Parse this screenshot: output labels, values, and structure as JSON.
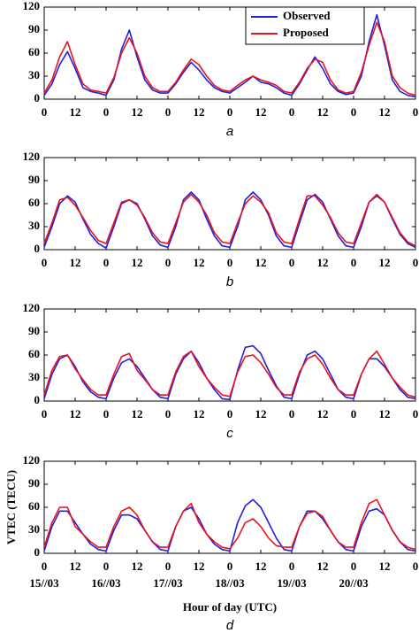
{
  "chart_data": [
    {
      "type": "line",
      "panel_label": "a",
      "legend": "upper right",
      "x": [
        0,
        3,
        6,
        9,
        12,
        15,
        18,
        21,
        24,
        27,
        30,
        33,
        36,
        39,
        42,
        45,
        48,
        51,
        54,
        57,
        60,
        63,
        66,
        69,
        72,
        75,
        78,
        81,
        84,
        87,
        90,
        93,
        96,
        99,
        102,
        105,
        108,
        111,
        114,
        117,
        120,
        123,
        126,
        129,
        132,
        135,
        138,
        141,
        144
      ],
      "xlim": [
        0,
        144
      ],
      "xticks": [
        0,
        12,
        {
          "value": 24,
          "label": "0"
        },
        {
          "value": 36,
          "label": "12"
        },
        {
          "value": 48,
          "label": "0"
        },
        {
          "value": 60,
          "label": "12"
        },
        {
          "value": 72,
          "label": "0"
        },
        {
          "value": 84,
          "label": "12"
        },
        {
          "value": 96,
          "label": "0"
        },
        {
          "value": 108,
          "label": "12"
        },
        {
          "value": 120,
          "label": "0"
        },
        {
          "value": 132,
          "label": "12"
        },
        {
          "value": 144,
          "label": "0"
        }
      ],
      "ylim": [
        0,
        120
      ],
      "yticks": [
        0,
        30,
        60,
        90,
        120
      ],
      "series": [
        {
          "name": "Observed",
          "color": "#1f1fe0",
          "values": [
            5,
            20,
            45,
            62,
            40,
            15,
            10,
            8,
            5,
            25,
            65,
            90,
            55,
            25,
            12,
            8,
            8,
            20,
            35,
            48,
            38,
            25,
            15,
            10,
            8,
            15,
            22,
            30,
            22,
            20,
            15,
            8,
            5,
            20,
            38,
            55,
            40,
            20,
            10,
            6,
            8,
            30,
            75,
            110,
            70,
            25,
            10,
            5,
            3
          ]
        },
        {
          "name": "Proposed",
          "color": "#e8141e",
          "values": [
            8,
            25,
            55,
            75,
            45,
            20,
            12,
            10,
            8,
            28,
            60,
            80,
            60,
            30,
            15,
            10,
            10,
            22,
            38,
            52,
            45,
            30,
            18,
            12,
            10,
            18,
            25,
            30,
            25,
            22,
            18,
            10,
            8,
            22,
            40,
            52,
            48,
            25,
            12,
            8,
            10,
            35,
            70,
            100,
            75,
            30,
            15,
            8,
            5
          ]
        }
      ]
    },
    {
      "type": "line",
      "panel_label": "b",
      "x": [
        0,
        3,
        6,
        9,
        12,
        15,
        18,
        21,
        24,
        27,
        30,
        33,
        36,
        39,
        42,
        45,
        48,
        51,
        54,
        57,
        60,
        63,
        66,
        69,
        72,
        75,
        78,
        81,
        84,
        87,
        90,
        93,
        96,
        99,
        102,
        105,
        108,
        111,
        114,
        117,
        120,
        123,
        126,
        129,
        132,
        135,
        138,
        141,
        144
      ],
      "xlim": [
        0,
        144
      ],
      "xticks": [
        0,
        12,
        {
          "value": 24,
          "label": "0"
        },
        {
          "value": 36,
          "label": "12"
        },
        {
          "value": 48,
          "label": "0"
        },
        {
          "value": 60,
          "label": "12"
        },
        {
          "value": 72,
          "label": "0"
        },
        {
          "value": 84,
          "label": "12"
        },
        {
          "value": 96,
          "label": "0"
        },
        {
          "value": 108,
          "label": "12"
        },
        {
          "value": 120,
          "label": "0"
        },
        {
          "value": 132,
          "label": "12"
        },
        {
          "value": 144,
          "label": "0"
        }
      ],
      "ylim": [
        0,
        120
      ],
      "yticks": [
        0,
        30,
        60,
        90,
        120
      ],
      "series": [
        {
          "color": "#1f1fe0",
          "values": [
            3,
            30,
            60,
            70,
            62,
            40,
            20,
            8,
            2,
            30,
            60,
            65,
            60,
            40,
            18,
            6,
            3,
            30,
            65,
            75,
            65,
            40,
            18,
            5,
            3,
            30,
            65,
            75,
            65,
            45,
            18,
            5,
            3,
            35,
            65,
            72,
            62,
            40,
            18,
            5,
            3,
            30,
            62,
            70,
            62,
            40,
            20,
            8,
            3
          ]
        },
        {
          "color": "#e8141e",
          "values": [
            8,
            35,
            65,
            68,
            58,
            42,
            25,
            12,
            8,
            35,
            62,
            65,
            58,
            42,
            22,
            10,
            8,
            35,
            62,
            72,
            62,
            45,
            22,
            10,
            8,
            35,
            60,
            70,
            62,
            48,
            22,
            10,
            8,
            40,
            70,
            70,
            58,
            42,
            22,
            10,
            8,
            35,
            62,
            72,
            62,
            42,
            22,
            10,
            5
          ]
        }
      ]
    },
    {
      "type": "line",
      "panel_label": "c",
      "x": [
        0,
        3,
        6,
        9,
        12,
        15,
        18,
        21,
        24,
        27,
        30,
        33,
        36,
        39,
        42,
        45,
        48,
        51,
        54,
        57,
        60,
        63,
        66,
        69,
        72,
        75,
        78,
        81,
        84,
        87,
        90,
        93,
        96,
        99,
        102,
        105,
        108,
        111,
        114,
        117,
        120,
        123,
        126,
        129,
        132,
        135,
        138,
        141,
        144
      ],
      "xlim": [
        0,
        144
      ],
      "xticks": [
        0,
        12,
        {
          "value": 24,
          "label": "0"
        },
        {
          "value": 36,
          "label": "12"
        },
        {
          "value": 48,
          "label": "0"
        },
        {
          "value": 60,
          "label": "12"
        },
        {
          "value": 72,
          "label": "0"
        },
        {
          "value": 84,
          "label": "12"
        },
        {
          "value": 96,
          "label": "0"
        },
        {
          "value": 108,
          "label": "12"
        },
        {
          "value": 120,
          "label": "0"
        },
        {
          "value": 132,
          "label": "12"
        },
        {
          "value": 144,
          "label": "0"
        }
      ],
      "ylim": [
        0,
        120
      ],
      "yticks": [
        0,
        30,
        60,
        90,
        120
      ],
      "series": [
        {
          "color": "#1f1fe0",
          "values": [
            3,
            35,
            55,
            60,
            45,
            25,
            12,
            5,
            3,
            30,
            50,
            55,
            45,
            30,
            15,
            5,
            3,
            35,
            55,
            65,
            50,
            30,
            15,
            3,
            2,
            40,
            70,
            72,
            62,
            40,
            20,
            5,
            3,
            35,
            60,
            65,
            55,
            35,
            15,
            5,
            3,
            35,
            55,
            55,
            45,
            30,
            15,
            5,
            3
          ]
        },
        {
          "color": "#e8141e",
          "values": [
            8,
            40,
            58,
            60,
            42,
            28,
            15,
            8,
            8,
            35,
            58,
            62,
            40,
            28,
            15,
            8,
            8,
            38,
            58,
            65,
            45,
            30,
            18,
            8,
            6,
            38,
            58,
            60,
            50,
            35,
            18,
            8,
            8,
            38,
            55,
            60,
            48,
            30,
            15,
            8,
            8,
            35,
            55,
            65,
            48,
            30,
            18,
            8,
            5
          ]
        }
      ]
    },
    {
      "type": "line",
      "panel_label": "d",
      "ylabel": "VTEC (TECU)",
      "xlabel": "Hour of day (UTC)",
      "date_labels": [
        "15//03",
        "16//03",
        "17//03",
        "18//03",
        "19//03",
        "20//03"
      ],
      "x": [
        0,
        3,
        6,
        9,
        12,
        15,
        18,
        21,
        24,
        27,
        30,
        33,
        36,
        39,
        42,
        45,
        48,
        51,
        54,
        57,
        60,
        63,
        66,
        69,
        72,
        75,
        78,
        81,
        84,
        87,
        90,
        93,
        96,
        99,
        102,
        105,
        108,
        111,
        114,
        117,
        120,
        123,
        126,
        129,
        132,
        135,
        138,
        141,
        144
      ],
      "xlim": [
        0,
        144
      ],
      "xticks": [
        0,
        12,
        {
          "value": 24,
          "label": "0"
        },
        {
          "value": 36,
          "label": "12"
        },
        {
          "value": 48,
          "label": "0"
        },
        {
          "value": 60,
          "label": "12"
        },
        {
          "value": 72,
          "label": "0"
        },
        {
          "value": 84,
          "label": "12"
        },
        {
          "value": 96,
          "label": "0"
        },
        {
          "value": 108,
          "label": "12"
        },
        {
          "value": 120,
          "label": "0"
        },
        {
          "value": 132,
          "label": "12"
        },
        {
          "value": 144,
          "label": "0"
        }
      ],
      "ylim": [
        0,
        120
      ],
      "yticks": [
        0,
        30,
        60,
        90,
        120
      ],
      "series": [
        {
          "color": "#1f1fe0",
          "values": [
            3,
            35,
            55,
            55,
            40,
            25,
            12,
            5,
            3,
            30,
            50,
            50,
            45,
            30,
            15,
            5,
            3,
            35,
            55,
            60,
            45,
            25,
            12,
            5,
            3,
            40,
            62,
            70,
            60,
            40,
            20,
            5,
            3,
            35,
            55,
            55,
            45,
            30,
            15,
            5,
            3,
            35,
            55,
            58,
            50,
            30,
            15,
            5,
            3
          ]
        },
        {
          "color": "#e8141e",
          "values": [
            8,
            40,
            60,
            60,
            35,
            25,
            15,
            8,
            8,
            35,
            55,
            60,
            50,
            30,
            15,
            8,
            8,
            35,
            55,
            65,
            40,
            25,
            15,
            8,
            6,
            20,
            40,
            45,
            35,
            20,
            10,
            8,
            8,
            35,
            52,
            55,
            48,
            30,
            15,
            8,
            8,
            40,
            65,
            70,
            50,
            30,
            15,
            8,
            5
          ]
        }
      ]
    }
  ]
}
